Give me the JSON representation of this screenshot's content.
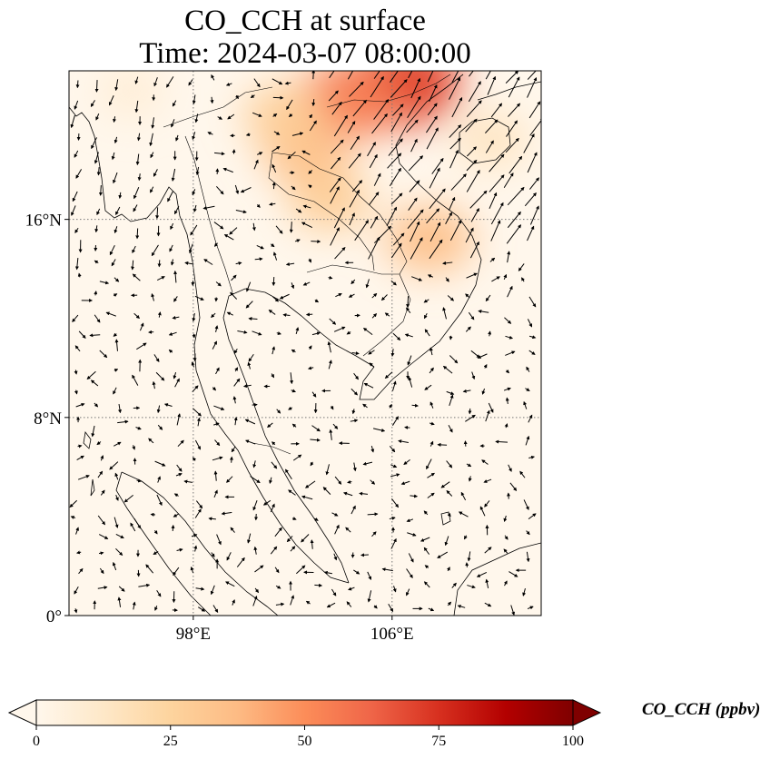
{
  "map": {
    "title_line1": "CO_CCH at surface",
    "title_line2": "Time: 2024-03-07 08:00:00",
    "variable": "CO_CCH",
    "lon_ticks": [
      {
        "value": 98,
        "label": "98°E"
      },
      {
        "value": 106,
        "label": "106°E"
      }
    ],
    "lat_ticks": [
      {
        "value": 0,
        "label": "0°"
      },
      {
        "value": 8,
        "label": "8°N"
      },
      {
        "value": 16,
        "label": "16°N"
      }
    ],
    "extent": {
      "lon_min": 93,
      "lon_max": 112,
      "lat_min": 0,
      "lat_max": 22
    },
    "gridlines": true,
    "colormap": "OrRd",
    "colormap_stops": [
      "#fff7ec",
      "#fee8c8",
      "#fdd49e",
      "#fdbb84",
      "#fc8d59",
      "#ef6548",
      "#d7301f",
      "#b30000",
      "#7f0000"
    ],
    "coastline_color": "#000000",
    "wind_vectors": true
  },
  "colorbar": {
    "min": 0,
    "max": 100,
    "ticks": [
      {
        "value": 0,
        "label": "0"
      },
      {
        "value": 25,
        "label": "25"
      },
      {
        "value": 50,
        "label": "50"
      },
      {
        "value": 75,
        "label": "75"
      },
      {
        "value": 100,
        "label": "100"
      }
    ],
    "label": "CO_CCH (ppbv)",
    "extend": "both"
  },
  "plumes": [
    {
      "lon": 106.5,
      "lat": 21.5,
      "value": 70
    },
    {
      "lon": 104.2,
      "lat": 20.8,
      "value": 55
    },
    {
      "lon": 102.5,
      "lat": 18.8,
      "value": 35
    },
    {
      "lon": 103.5,
      "lat": 16.8,
      "value": 28
    },
    {
      "lon": 107.5,
      "lat": 15.2,
      "value": 35
    },
    {
      "lon": 101.7,
      "lat": 20.2,
      "value": 28
    },
    {
      "lon": 110.0,
      "lat": 19.2,
      "value": 15
    },
    {
      "lon": 95.5,
      "lat": 21.2,
      "value": 8
    }
  ]
}
